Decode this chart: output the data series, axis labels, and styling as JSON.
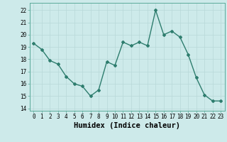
{
  "x": [
    0,
    1,
    2,
    3,
    4,
    5,
    6,
    7,
    8,
    9,
    10,
    11,
    12,
    13,
    14,
    15,
    16,
    17,
    18,
    19,
    20,
    21,
    22,
    23
  ],
  "y": [
    19.3,
    18.8,
    17.9,
    17.6,
    16.6,
    16.0,
    15.8,
    15.0,
    15.5,
    17.8,
    17.5,
    19.4,
    19.1,
    19.4,
    19.1,
    22.0,
    20.0,
    20.3,
    19.8,
    18.4,
    16.5,
    15.1,
    14.6,
    14.6
  ],
  "line_color": "#2e7d6e",
  "marker": "D",
  "marker_size": 2,
  "bg_color": "#cdeaea",
  "grid_color": "#b8d8d8",
  "xlabel": "Humidex (Indice chaleur)",
  "ylim": [
    13.8,
    22.6
  ],
  "xlim": [
    -0.5,
    23.5
  ],
  "yticks": [
    14,
    15,
    16,
    17,
    18,
    19,
    20,
    21,
    22
  ],
  "xticks": [
    0,
    1,
    2,
    3,
    4,
    5,
    6,
    7,
    8,
    9,
    10,
    11,
    12,
    13,
    14,
    15,
    16,
    17,
    18,
    19,
    20,
    21,
    22,
    23
  ],
  "tick_fontsize": 5.5,
  "xlabel_fontsize": 7.5,
  "line_width": 1.0
}
